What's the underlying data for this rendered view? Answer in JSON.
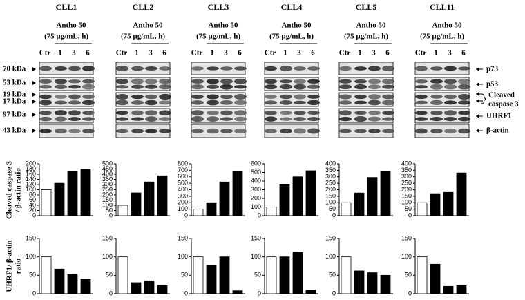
{
  "blots": {
    "columns": [
      "CLL1",
      "CLL2",
      "CLL3",
      "CLL4",
      "CLL5",
      "CLL11"
    ],
    "treatment": "Antho 50",
    "dose": "(75 µg/mL,  h)",
    "lanes": [
      "Ctr",
      "1",
      "3",
      "6"
    ],
    "markers": [
      "70 kDa",
      "53 kDa",
      "19 kDa",
      "17 kDa",
      "97 kDa",
      "43 kDa"
    ],
    "proteins": [
      "p73",
      "p53",
      "Cleaved",
      "caspase 3",
      "UHRF1",
      "β-actin"
    ]
  },
  "row_labels": [
    [
      "Cleaved caspase 3",
      "/ β-actin ratio"
    ],
    [
      "UHRF1/ β-actin",
      "ratio"
    ]
  ],
  "chart_data": [
    {
      "type": "bar",
      "values": [
        100,
        125,
        170,
        180
      ],
      "colors": [
        "#ffffff",
        "#000000",
        "#000000",
        "#000000"
      ],
      "ylim": [
        0,
        200
      ],
      "yticks": [
        0,
        20,
        40,
        60,
        80,
        100,
        120,
        140,
        160,
        180,
        200
      ]
    },
    {
      "type": "bar",
      "values": [
        100,
        220,
        325,
        385
      ],
      "colors": [
        "#ffffff",
        "#000000",
        "#000000",
        "#000000"
      ],
      "ylim": [
        0,
        500
      ],
      "yticks": [
        0,
        50,
        100,
        150,
        200,
        250,
        300,
        350,
        400,
        450,
        500
      ]
    },
    {
      "type": "bar",
      "values": [
        100,
        200,
        520,
        680
      ],
      "colors": [
        "#ffffff",
        "#000000",
        "#000000",
        "#000000"
      ],
      "ylim": [
        0,
        800
      ],
      "yticks": [
        0,
        100,
        200,
        300,
        400,
        500,
        600,
        700,
        800
      ]
    },
    {
      "type": "bar",
      "values": [
        100,
        365,
        450,
        520
      ],
      "colors": [
        "#ffffff",
        "#000000",
        "#000000",
        "#000000"
      ],
      "ylim": [
        0,
        600
      ],
      "yticks": [
        0,
        100,
        200,
        300,
        400,
        500,
        600
      ]
    },
    {
      "type": "bar",
      "values": [
        100,
        175,
        295,
        340
      ],
      "colors": [
        "#ffffff",
        "#000000",
        "#000000",
        "#000000"
      ],
      "ylim": [
        0,
        400
      ],
      "yticks": [
        0,
        50,
        100,
        150,
        200,
        250,
        300,
        350,
        400
      ]
    },
    {
      "type": "bar",
      "values": [
        100,
        170,
        180,
        330
      ],
      "colors": [
        "#ffffff",
        "#000000",
        "#000000",
        "#000000"
      ],
      "ylim": [
        0,
        400
      ],
      "yticks": [
        0,
        50,
        100,
        150,
        200,
        250,
        300,
        350,
        400
      ]
    },
    {
      "type": "bar",
      "values": [
        100,
        67,
        52,
        40
      ],
      "colors": [
        "#ffffff",
        "#000000",
        "#000000",
        "#000000"
      ],
      "ylim": [
        0,
        150
      ],
      "yticks": [
        0,
        50,
        100,
        150
      ]
    },
    {
      "type": "bar",
      "values": [
        100,
        30,
        35,
        22
      ],
      "colors": [
        "#ffffff",
        "#000000",
        "#000000",
        "#000000"
      ],
      "ylim": [
        0,
        150
      ],
      "yticks": [
        0,
        50,
        100,
        150
      ]
    },
    {
      "type": "bar",
      "values": [
        100,
        77,
        100,
        8
      ],
      "colors": [
        "#ffffff",
        "#000000",
        "#000000",
        "#000000"
      ],
      "ylim": [
        0,
        150
      ],
      "yticks": [
        0,
        50,
        100,
        150
      ]
    },
    {
      "type": "bar",
      "values": [
        100,
        100,
        112,
        10
      ],
      "colors": [
        "#ffffff",
        "#000000",
        "#000000",
        "#000000"
      ],
      "ylim": [
        0,
        150
      ],
      "yticks": [
        0,
        50,
        100,
        150
      ]
    },
    {
      "type": "bar",
      "values": [
        100,
        62,
        57,
        50
      ],
      "colors": [
        "#ffffff",
        "#000000",
        "#000000",
        "#000000"
      ],
      "ylim": [
        0,
        150
      ],
      "yticks": [
        0,
        50,
        100,
        150
      ]
    },
    {
      "type": "bar",
      "values": [
        100,
        80,
        20,
        22
      ],
      "colors": [
        "#ffffff",
        "#000000",
        "#000000",
        "#000000"
      ],
      "ylim": [
        0,
        150
      ],
      "yticks": [
        0,
        50,
        100,
        150
      ]
    }
  ]
}
